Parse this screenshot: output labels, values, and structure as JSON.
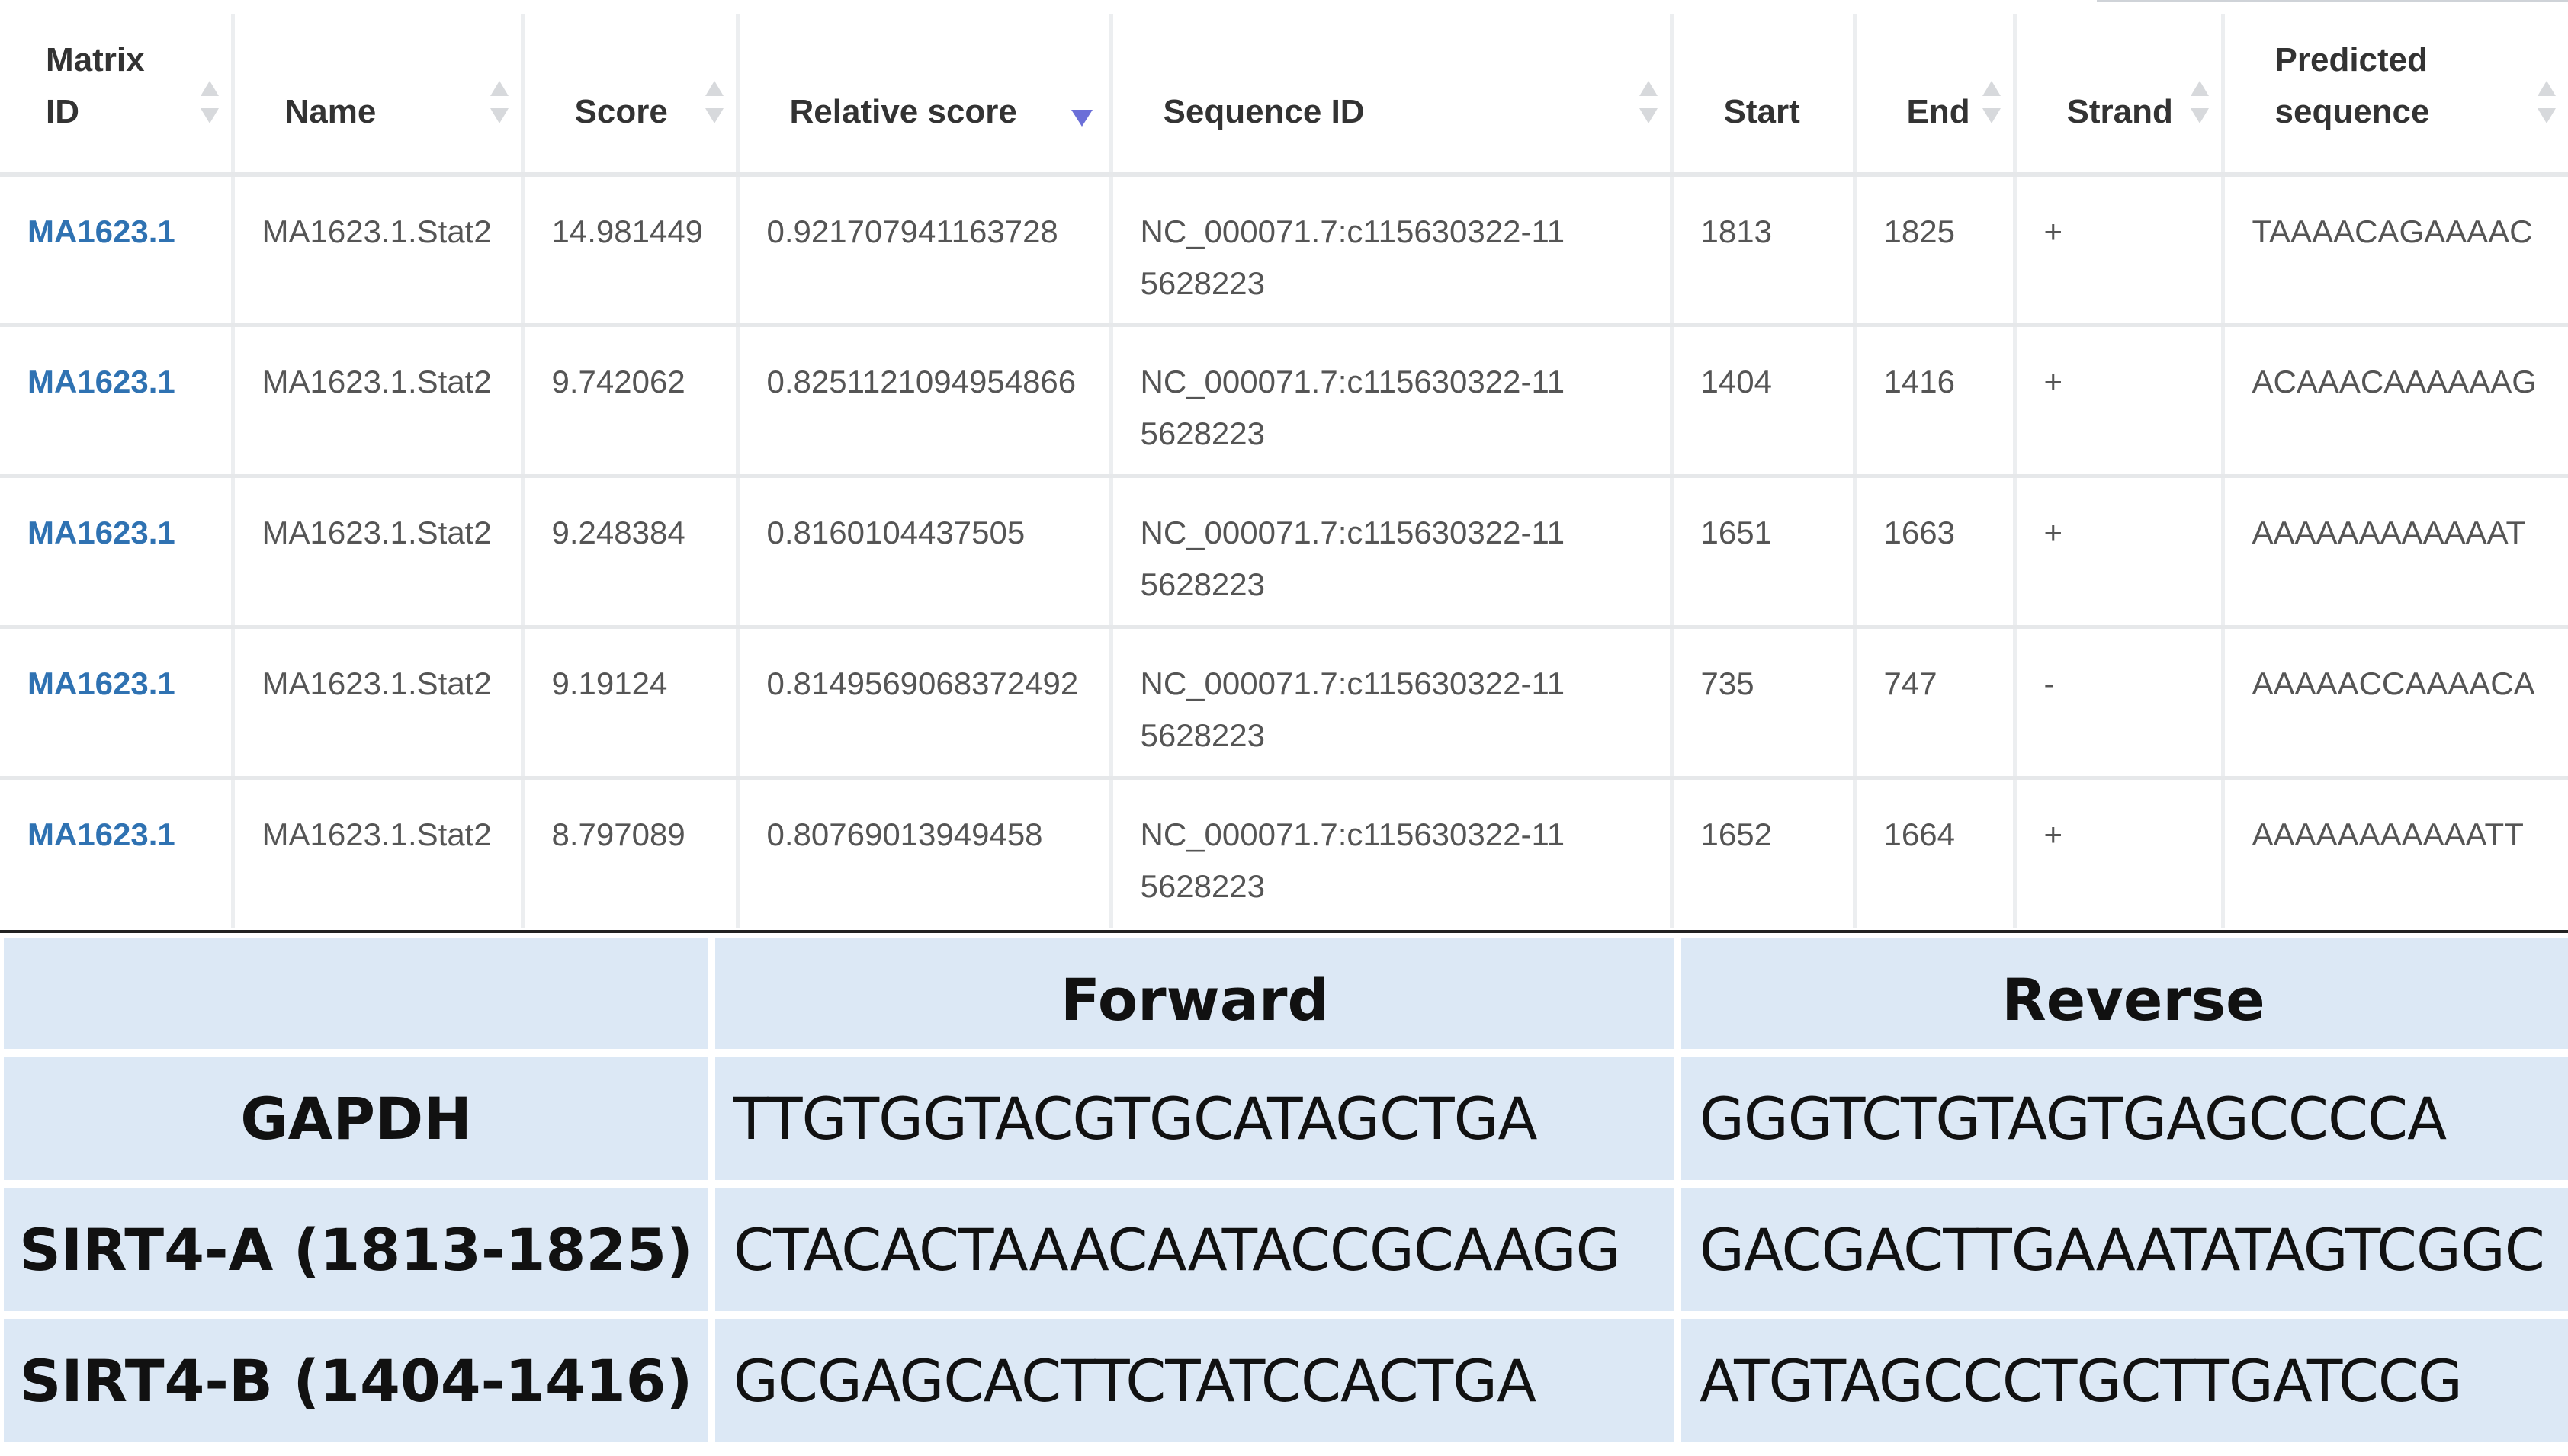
{
  "results": {
    "columns": [
      {
        "label": "Matrix ID",
        "sort": "both"
      },
      {
        "label": "Name",
        "sort": "both"
      },
      {
        "label": "Score",
        "sort": "both"
      },
      {
        "label": "Relative score",
        "sort": "desc"
      },
      {
        "label": "Sequence ID",
        "sort": "both"
      },
      {
        "label": "Start",
        "sort": "none"
      },
      {
        "label": "End",
        "sort": "both"
      },
      {
        "label": "Strand",
        "sort": "both"
      },
      {
        "label": "Predicted sequence",
        "sort": "both"
      }
    ],
    "rows": [
      {
        "matrix_id": "MA1623.1",
        "name": "MA1623.1.Stat2",
        "score": "14.981449",
        "relative_score": "0.921707941163728",
        "sequence_id": "NC_000071.7:c115630322-115628223",
        "start": "1813",
        "end": "1825",
        "strand": "+",
        "predicted_sequence": "TAAAACAGAAAAC"
      },
      {
        "matrix_id": "MA1623.1",
        "name": "MA1623.1.Stat2",
        "score": "9.742062",
        "relative_score": "0.8251121094954866",
        "sequence_id": "NC_000071.7:c115630322-115628223",
        "start": "1404",
        "end": "1416",
        "strand": "+",
        "predicted_sequence": "ACAAACAAAAAAG"
      },
      {
        "matrix_id": "MA1623.1",
        "name": "MA1623.1.Stat2",
        "score": "9.248384",
        "relative_score": "0.8160104437505",
        "sequence_id": "NC_000071.7:c115630322-115628223",
        "start": "1651",
        "end": "1663",
        "strand": "+",
        "predicted_sequence": "AAAAAAAAAAAAT"
      },
      {
        "matrix_id": "MA1623.1",
        "name": "MA1623.1.Stat2",
        "score": "9.19124",
        "relative_score": "0.8149569068372492",
        "sequence_id": "NC_000071.7:c115630322-115628223",
        "start": "735",
        "end": "747",
        "strand": "-",
        "predicted_sequence": "AAAAACCAAAACA"
      },
      {
        "matrix_id": "MA1623.1",
        "name": "MA1623.1.Stat2",
        "score": "8.797089",
        "relative_score": "0.80769013949458",
        "sequence_id": "NC_000071.7:c115630322-115628223",
        "start": "1652",
        "end": "1664",
        "strand": "+",
        "predicted_sequence": "AAAAAAAAAAATT"
      }
    ],
    "colors": {
      "link": "#2f72b2",
      "sort_active": "#6b6fd8",
      "sort_inactive": "#d7d9dc"
    }
  },
  "primers": {
    "header": {
      "blank": "",
      "forward": "Forward",
      "reverse": "Reverse"
    },
    "rows": [
      {
        "gene": "GAPDH",
        "forward": "TTGTGGTACGTGCATAGCTGA",
        "reverse": "GGGTCTGTAGTGAGCCCCA"
      },
      {
        "gene": "SIRT4-A (1813-1825)",
        "forward": "CTACACTAAACAATACCGCAAGG",
        "reverse": "GACGACTTGAAATATAGTCGGC"
      },
      {
        "gene": "SIRT4-B (1404-1416)",
        "forward": "GCGAGCACTTCTATCCACTGA",
        "reverse": "ATGTAGCCCTGCTTGATCCG"
      }
    ],
    "colors": {
      "cell_bg": "#dce8f5"
    }
  }
}
